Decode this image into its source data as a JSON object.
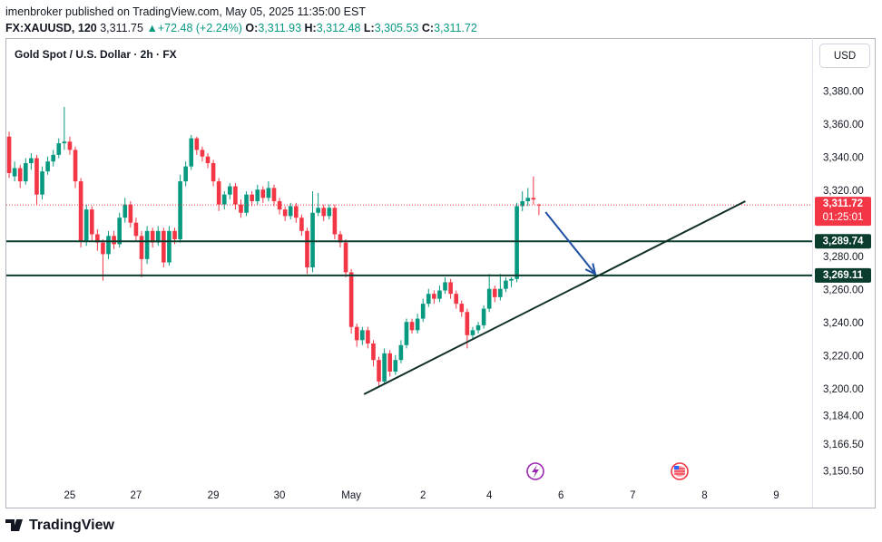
{
  "header": {
    "publisher": "imenbroker published on TradingView.com, May 05, 2025 11:35:00 EST",
    "symbol": "FX:XAUUSD, 120",
    "price": "3,311.75",
    "change": "+72.48 (+2.24%)",
    "ohlc": [
      {
        "key": "O:",
        "value": "3,311.93"
      },
      {
        "key": "H:",
        "value": "3,312.48"
      },
      {
        "key": "L:",
        "value": "3,305.53"
      },
      {
        "key": "C:",
        "value": "3,311.72"
      }
    ]
  },
  "footer": {
    "brand": "TradingView"
  },
  "chart_data": {
    "type": "candlestick",
    "title": "Gold Spot / U.S. Dollar · 2h · FX",
    "currency": "USD",
    "up_color": "#089981",
    "down_color": "#f23645",
    "level_color": "#0b3d2e",
    "drawing_color": "#0f2f27",
    "arrow_color": "#1e4fa3",
    "categories": [
      null,
      null,
      null,
      null,
      null,
      null,
      null,
      null,
      null,
      null,
      null,
      "25",
      null,
      null,
      null,
      null,
      null,
      null,
      null,
      null,
      null,
      null,
      null,
      "27",
      null,
      null,
      null,
      null,
      null,
      null,
      null,
      null,
      null,
      null,
      null,
      null,
      null,
      "29",
      null,
      null,
      null,
      null,
      null,
      null,
      null,
      null,
      null,
      null,
      null,
      "30",
      null,
      null,
      null,
      null,
      null,
      null,
      null,
      null,
      null,
      null,
      null,
      null,
      "May",
      null,
      null,
      null,
      null,
      null,
      null,
      null,
      null,
      null,
      null,
      null,
      null,
      "2",
      null,
      null,
      null,
      null,
      null,
      null,
      null,
      null,
      null,
      null,
      null,
      "4",
      null,
      null,
      null,
      null,
      null,
      null,
      null,
      null,
      null,
      null,
      null,
      null,
      "6",
      null,
      null,
      null,
      null,
      null,
      null,
      null,
      null,
      null,
      null,
      null,
      null,
      "7",
      null,
      null,
      null,
      null,
      null,
      null,
      null,
      null,
      null,
      null,
      null,
      null,
      "8",
      null,
      null,
      null,
      null,
      null,
      null,
      null,
      null,
      null,
      null,
      null,
      null,
      "9",
      null,
      null,
      null,
      null,
      null,
      null
    ],
    "open": [
      3353,
      3329,
      3334,
      3326,
      3337,
      3340,
      3318,
      3332,
      3338,
      3342,
      3349,
      3350,
      3345,
      3326,
      3290,
      3309,
      3294,
      3289,
      3282,
      3293,
      3288,
      3304,
      3312,
      3301,
      3293,
      3279,
      3296,
      3289,
      3296,
      3277,
      3296,
      3291,
      3326,
      3335,
      3352,
      3345,
      3341,
      3337,
      3326,
      3312,
      3318,
      3323,
      3312,
      3307,
      3318,
      3314,
      3321,
      3316,
      3322,
      3314,
      3309,
      3305,
      3311,
      3304,
      3296,
      3274,
      3307,
      3310,
      3305,
      3310,
      3294,
      3289,
      3271,
      3238,
      3230,
      3236,
      3228,
      3218,
      3205,
      3222,
      3211,
      3218,
      3227,
      3241,
      3236,
      3243,
      3252,
      3258,
      3255,
      3260,
      3265,
      3258,
      3252,
      3247,
      3233,
      3236,
      3239,
      3249,
      3261,
      3256,
      3261,
      3266,
      3267,
      3311,
      3314,
      3316,
      3311.93,
      null,
      null,
      null,
      null,
      null,
      null,
      null,
      null,
      null,
      null,
      null,
      null,
      null,
      null,
      null,
      null,
      null,
      null,
      null,
      null,
      null,
      null,
      null,
      null,
      null,
      null,
      null,
      null,
      null,
      null,
      null,
      null,
      null,
      null,
      null,
      null,
      null,
      null,
      null,
      null,
      null,
      null,
      null,
      null,
      null,
      null,
      null,
      null,
      null
    ],
    "high": [
      3356,
      3338,
      3336,
      3340,
      3343,
      3342,
      3335,
      3341,
      3345,
      3352,
      3371,
      3353,
      3347,
      3328,
      3312,
      3311,
      3297,
      3291,
      3296,
      3296,
      3307,
      3316,
      3314,
      3304,
      3296,
      3299,
      3298,
      3299,
      3298,
      3299,
      3298,
      3330,
      3338,
      3354,
      3353,
      3347,
      3343,
      3339,
      3328,
      3320,
      3325,
      3325,
      3315,
      3320,
      3320,
      3324,
      3323,
      3326,
      3324,
      3316,
      3311,
      3313,
      3313,
      3306,
      3298,
      3320,
      3319,
      3312,
      3312,
      3312,
      3296,
      3291,
      3273,
      3240,
      3238,
      3238,
      3230,
      3220,
      3225,
      3224,
      3221,
      3230,
      3243,
      3243,
      3246,
      3255,
      3261,
      3260,
      3263,
      3268,
      3267,
      3260,
      3254,
      3249,
      3238,
      3241,
      3251,
      3270,
      3263,
      3270,
      3268,
      3268,
      3313,
      3320,
      3322,
      3329,
      3312.48,
      null,
      null,
      null,
      null,
      null,
      null,
      null,
      null,
      null,
      null,
      null,
      null,
      null,
      null,
      null,
      null,
      null,
      null,
      null,
      null,
      null,
      null,
      null,
      null,
      null,
      null,
      null,
      null,
      null,
      null,
      null,
      null,
      null,
      null,
      null,
      null,
      null,
      null,
      null,
      null,
      null,
      null,
      null,
      null,
      null,
      null,
      null,
      null,
      null
    ],
    "low": [
      3328,
      3326,
      3322,
      3324,
      3333,
      3312,
      3315,
      3330,
      3335,
      3340,
      3345,
      3342,
      3322,
      3286,
      3287,
      3290,
      3284,
      3266,
      3279,
      3285,
      3286,
      3301,
      3298,
      3290,
      3268,
      3276,
      3286,
      3287,
      3274,
      3275,
      3288,
      3289,
      3323,
      3333,
      3342,
      3338,
      3334,
      3323,
      3308,
      3309,
      3315,
      3309,
      3304,
      3305,
      3311,
      3312,
      3313,
      3314,
      3311,
      3306,
      3302,
      3303,
      3301,
      3293,
      3270,
      3271,
      3305,
      3302,
      3303,
      3291,
      3286,
      3268,
      3234,
      3226,
      3227,
      3225,
      3214,
      3202,
      3203,
      3208,
      3209,
      3216,
      3225,
      3234,
      3234,
      3241,
      3250,
      3252,
      3253,
      3258,
      3255,
      3249,
      3244,
      3225,
      3230,
      3234,
      3237,
      3247,
      3253,
      3254,
      3259,
      3262,
      3265,
      3308,
      3311,
      3312,
      3305.53,
      null,
      null,
      null,
      null,
      null,
      null,
      null,
      null,
      null,
      null,
      null,
      null,
      null,
      null,
      null,
      null,
      null,
      null,
      null,
      null,
      null,
      null,
      null,
      null,
      null,
      null,
      null,
      null,
      null,
      null,
      null,
      null,
      null,
      null,
      null,
      null,
      null,
      null,
      null,
      null,
      null,
      null,
      null,
      null,
      null,
      null,
      null,
      null,
      null
    ],
    "close": [
      3331,
      3334,
      3326,
      3337,
      3340,
      3318,
      3332,
      3338,
      3342,
      3349,
      3350,
      3345,
      3326,
      3290,
      3309,
      3294,
      3289,
      3282,
      3293,
      3288,
      3304,
      3312,
      3301,
      3293,
      3279,
      3296,
      3289,
      3296,
      3277,
      3296,
      3291,
      3326,
      3335,
      3352,
      3345,
      3341,
      3337,
      3326,
      3312,
      3318,
      3323,
      3312,
      3307,
      3318,
      3314,
      3321,
      3316,
      3322,
      3314,
      3309,
      3305,
      3311,
      3304,
      3296,
      3274,
      3307,
      3310,
      3305,
      3310,
      3294,
      3289,
      3271,
      3238,
      3230,
      3236,
      3228,
      3218,
      3205,
      3222,
      3211,
      3218,
      3227,
      3241,
      3236,
      3243,
      3252,
      3258,
      3255,
      3260,
      3265,
      3258,
      3252,
      3247,
      3233,
      3236,
      3239,
      3249,
      3261,
      3256,
      3261,
      3266,
      3267,
      3311,
      3314,
      3316,
      3315,
      3311.72,
      null,
      null,
      null,
      null,
      null,
      null,
      null,
      null,
      null,
      null,
      null,
      null,
      null,
      null,
      null,
      null,
      null,
      null,
      null,
      null,
      null,
      null,
      null,
      null,
      null,
      null,
      null,
      null,
      null,
      null,
      null,
      null,
      null,
      null,
      null,
      null,
      null,
      null,
      null,
      null,
      null,
      null,
      null,
      null,
      null,
      null,
      null,
      null,
      null
    ],
    "ylim": [
      3142.5,
      3412.6
    ],
    "yticks": [
      {
        "value": 3380,
        "label": "3,380.00"
      },
      {
        "value": 3360,
        "label": "3,360.00"
      },
      {
        "value": 3340,
        "label": "3,340.00"
      },
      {
        "value": 3320,
        "label": "3,320.00"
      },
      {
        "value": 3280,
        "label": "3,280.00"
      },
      {
        "value": 3260,
        "label": "3,260.00"
      },
      {
        "value": 3240,
        "label": "3,240.00"
      },
      {
        "value": 3220,
        "label": "3,220.00"
      },
      {
        "value": 3200,
        "label": "3,200.00"
      },
      {
        "value": 3184,
        "label": "3,184.00"
      },
      {
        "value": 3166.5,
        "label": "3,166.50"
      },
      {
        "value": 3150.5,
        "label": "3,150.50"
      }
    ],
    "last_price": {
      "value": 3311.72,
      "label": "3,311.72",
      "countdown": "01:25:01"
    },
    "levels": [
      {
        "value": 3289.74,
        "label": "3,289.74"
      },
      {
        "value": 3269.11,
        "label": "3,269.11"
      }
    ],
    "trend_line": {
      "x": [
        64.3,
        133.4
      ],
      "y": [
        3197.3,
        3314
      ]
    },
    "arrow": {
      "x": [
        97.2,
        106.2
      ],
      "y": [
        3307.4,
        3270
      ]
    }
  }
}
